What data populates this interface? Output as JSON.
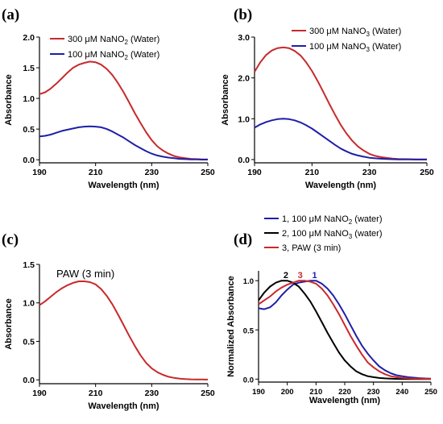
{
  "colors": {
    "red": "#c8292b",
    "blue": "#1f1fa8",
    "black": "#000000"
  },
  "chart_data": [
    {
      "id": "a",
      "type": "line",
      "panel_label": "(a)",
      "xlabel": "Wavelength (nm)",
      "ylabel": "Absorbance",
      "xlim": [
        190,
        250
      ],
      "ylim": [
        -0.05,
        2.0
      ],
      "xticks": [
        190,
        210,
        230,
        250
      ],
      "yticks": [
        0.0,
        0.5,
        1.0,
        1.5,
        2.0
      ],
      "ytick_labels": [
        "0.0",
        "0.5",
        "1.0",
        "1.5",
        "2.0"
      ],
      "legend_position": "top-left",
      "series": [
        {
          "name_prefix": "300 μM NaNO",
          "name_sub": "2",
          "name_suffix": " (Water)",
          "color": "#c8292b",
          "x": [
            190,
            192,
            194,
            196,
            198,
            200,
            202,
            204,
            206,
            208,
            210,
            212,
            214,
            216,
            218,
            220,
            222,
            224,
            226,
            228,
            230,
            232,
            234,
            236,
            238,
            240,
            242,
            244,
            246,
            248,
            250
          ],
          "y": [
            1.07,
            1.1,
            1.16,
            1.24,
            1.33,
            1.42,
            1.5,
            1.55,
            1.58,
            1.6,
            1.59,
            1.55,
            1.48,
            1.38,
            1.25,
            1.1,
            0.93,
            0.76,
            0.6,
            0.45,
            0.32,
            0.22,
            0.15,
            0.1,
            0.06,
            0.04,
            0.025,
            0.015,
            0.01,
            0.007,
            0.005
          ]
        },
        {
          "name_prefix": "100 μM NaNO",
          "name_sub": "2",
          "name_suffix": " (Water)",
          "color": "#1f1fa8",
          "x": [
            190,
            192,
            194,
            196,
            198,
            200,
            202,
            204,
            206,
            208,
            210,
            212,
            214,
            216,
            218,
            220,
            222,
            224,
            226,
            228,
            230,
            232,
            234,
            236,
            238,
            240,
            242,
            244,
            246,
            248,
            250
          ],
          "y": [
            0.38,
            0.39,
            0.41,
            0.44,
            0.47,
            0.49,
            0.51,
            0.53,
            0.54,
            0.545,
            0.54,
            0.53,
            0.5,
            0.46,
            0.41,
            0.36,
            0.3,
            0.24,
            0.19,
            0.14,
            0.1,
            0.07,
            0.05,
            0.035,
            0.025,
            0.015,
            0.01,
            0.007,
            0.005,
            0.003,
            0.002
          ]
        }
      ]
    },
    {
      "id": "b",
      "type": "line",
      "panel_label": "(b)",
      "xlabel": "Wavelength (nm)",
      "ylabel": "Absorbance",
      "xlim": [
        190,
        250
      ],
      "ylim": [
        -0.08,
        3.0
      ],
      "xticks": [
        190,
        210,
        230,
        250
      ],
      "yticks": [
        0.0,
        1.0,
        2.0,
        3.0
      ],
      "ytick_labels": [
        "0.0",
        "1.0",
        "2.0",
        "3.0"
      ],
      "legend_position": "top-right",
      "series": [
        {
          "name_prefix": "300 μM NaNO",
          "name_sub": "3",
          "name_suffix": " (Water)",
          "color": "#c8292b",
          "x": [
            190,
            192,
            194,
            196,
            198,
            200,
            202,
            204,
            206,
            208,
            210,
            212,
            214,
            216,
            218,
            220,
            222,
            224,
            226,
            228,
            230,
            232,
            234,
            236,
            238,
            240,
            242,
            244,
            246,
            248,
            250
          ],
          "y": [
            2.15,
            2.38,
            2.56,
            2.67,
            2.73,
            2.75,
            2.73,
            2.66,
            2.55,
            2.38,
            2.17,
            1.92,
            1.65,
            1.37,
            1.1,
            0.85,
            0.64,
            0.46,
            0.32,
            0.22,
            0.14,
            0.09,
            0.06,
            0.04,
            0.025,
            0.015,
            0.01,
            0.008,
            0.005,
            0.004,
            0.003
          ]
        },
        {
          "name_prefix": "100 μM NaNO",
          "name_sub": "3",
          "name_suffix": " (Water)",
          "color": "#1f1fa8",
          "x": [
            190,
            192,
            194,
            196,
            198,
            200,
            202,
            204,
            206,
            208,
            210,
            212,
            214,
            216,
            218,
            220,
            222,
            224,
            226,
            228,
            230,
            232,
            234,
            236,
            238,
            240,
            242,
            244,
            246,
            248,
            250
          ],
          "y": [
            0.78,
            0.86,
            0.92,
            0.96,
            0.99,
            1.0,
            0.99,
            0.96,
            0.91,
            0.84,
            0.76,
            0.66,
            0.56,
            0.46,
            0.36,
            0.27,
            0.2,
            0.14,
            0.1,
            0.07,
            0.045,
            0.03,
            0.02,
            0.012,
            0.008,
            0.005,
            0.003,
            0.002,
            0.001,
            0.001,
            0.0
          ]
        }
      ]
    },
    {
      "id": "c",
      "type": "line",
      "panel_label": "(c)",
      "xlabel": "Wavelength (nm)",
      "ylabel": "Absorbance",
      "xlim": [
        190,
        250
      ],
      "ylim": [
        -0.05,
        1.5
      ],
      "xticks": [
        190,
        210,
        230,
        250
      ],
      "yticks": [
        0.0,
        0.5,
        1.0,
        1.5
      ],
      "ytick_labels": [
        "0.0",
        "0.5",
        "1.0",
        "1.5"
      ],
      "annotation": "PAW (3 min)",
      "series": [
        {
          "color": "#c8292b",
          "x": [
            190,
            192,
            194,
            196,
            198,
            200,
            202,
            204,
            206,
            208,
            210,
            212,
            214,
            216,
            218,
            220,
            222,
            224,
            226,
            228,
            230,
            232,
            234,
            236,
            238,
            240,
            242,
            244,
            246,
            248,
            250
          ],
          "y": [
            0.97,
            1.02,
            1.08,
            1.14,
            1.19,
            1.23,
            1.26,
            1.28,
            1.28,
            1.27,
            1.24,
            1.18,
            1.09,
            0.98,
            0.85,
            0.71,
            0.57,
            0.44,
            0.32,
            0.22,
            0.15,
            0.1,
            0.065,
            0.04,
            0.025,
            0.015,
            0.01,
            0.007,
            0.005,
            0.004,
            0.003
          ]
        }
      ]
    },
    {
      "id": "d",
      "type": "line",
      "panel_label": "(d)",
      "xlabel": "Wavelength (nm)",
      "ylabel": "Normalized Absorbance",
      "xlim": [
        190,
        250
      ],
      "ylim": [
        -0.03,
        1.1
      ],
      "xticks": [
        190,
        200,
        210,
        220,
        230,
        240,
        250
      ],
      "yticks": [
        0.0,
        0.5,
        1.0
      ],
      "ytick_labels": [
        "0.0",
        "0.5",
        "1.0"
      ],
      "legend_position": "top",
      "peak_labels": [
        {
          "text": "2",
          "x": 199.5,
          "color": "#000000"
        },
        {
          "text": "3",
          "x": 204.5,
          "color": "#c8292b"
        },
        {
          "text": "1",
          "x": 209.5,
          "color": "#1f1fa8"
        }
      ],
      "series": [
        {
          "name_prefix": "1, 100 μM NaNO",
          "name_sub": "2",
          "name_suffix": " (water)",
          "color": "#1f1fa8",
          "x": [
            190,
            192,
            194,
            196,
            198,
            200,
            202,
            204,
            206,
            208,
            210,
            212,
            214,
            216,
            218,
            220,
            222,
            224,
            226,
            228,
            230,
            232,
            234,
            236,
            238,
            240,
            242,
            244,
            246,
            248,
            250
          ],
          "y": [
            0.72,
            0.71,
            0.73,
            0.78,
            0.85,
            0.91,
            0.96,
            0.98,
            0.99,
            1.0,
            1.0,
            0.97,
            0.92,
            0.85,
            0.76,
            0.66,
            0.55,
            0.44,
            0.34,
            0.26,
            0.19,
            0.13,
            0.09,
            0.06,
            0.04,
            0.03,
            0.02,
            0.015,
            0.01,
            0.007,
            0.005
          ]
        },
        {
          "name_prefix": "2, 100 μM NaNO",
          "name_sub": "3",
          "name_suffix": " (water)",
          "color": "#000000",
          "x": [
            190,
            192,
            194,
            196,
            198,
            200,
            202,
            204,
            206,
            208,
            210,
            212,
            214,
            216,
            218,
            220,
            222,
            224,
            226,
            228,
            230,
            232,
            234,
            236,
            238,
            240,
            242,
            244,
            246,
            248,
            250
          ],
          "y": [
            0.8,
            0.88,
            0.94,
            0.98,
            1.0,
            1.0,
            0.98,
            0.94,
            0.87,
            0.79,
            0.69,
            0.58,
            0.47,
            0.37,
            0.27,
            0.19,
            0.13,
            0.08,
            0.05,
            0.03,
            0.02,
            0.012,
            0.008,
            0.005,
            0.003,
            0.002,
            0.001,
            0.001,
            0.0,
            0.0,
            0.0
          ]
        },
        {
          "name_prefix": "3, PAW (3 min)",
          "name_sub": "",
          "name_suffix": "",
          "color": "#c8292b",
          "x": [
            190,
            192,
            194,
            196,
            198,
            200,
            202,
            204,
            206,
            208,
            210,
            212,
            214,
            216,
            218,
            220,
            222,
            224,
            226,
            228,
            230,
            232,
            234,
            236,
            238,
            240,
            242,
            244,
            246,
            248,
            250
          ],
          "y": [
            0.76,
            0.8,
            0.84,
            0.89,
            0.93,
            0.96,
            0.98,
            1.0,
            1.0,
            0.99,
            0.97,
            0.92,
            0.85,
            0.76,
            0.66,
            0.55,
            0.44,
            0.34,
            0.25,
            0.17,
            0.12,
            0.08,
            0.05,
            0.03,
            0.02,
            0.012,
            0.008,
            0.005,
            0.004,
            0.003,
            0.002
          ]
        }
      ]
    }
  ]
}
